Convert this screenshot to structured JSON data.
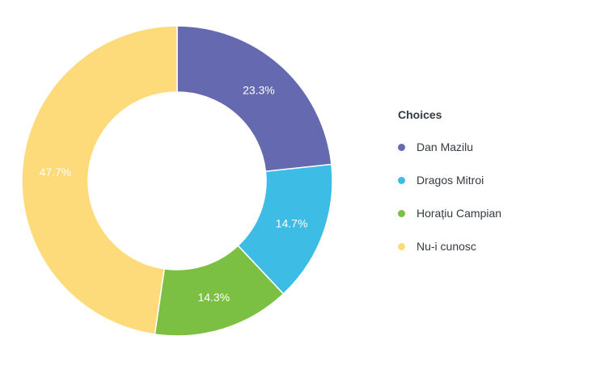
{
  "chart_data": {
    "type": "pie",
    "donut": true,
    "legend_title": "Choices",
    "legend_position": "right",
    "slices": [
      {
        "label": "Dan Mazilu",
        "value": 23.3,
        "value_label": "23.3%",
        "color": "#6569b0"
      },
      {
        "label": "Dragos Mitroi",
        "value": 14.7,
        "value_label": "14.7%",
        "color": "#3dbce5"
      },
      {
        "label": "Horațiu Campian",
        "value": 14.3,
        "value_label": "14.3%",
        "color": "#7bc043"
      },
      {
        "label": "Nu-i cunosc",
        "value": 47.7,
        "value_label": "47.7%",
        "color": "#fddb7a"
      }
    ]
  }
}
